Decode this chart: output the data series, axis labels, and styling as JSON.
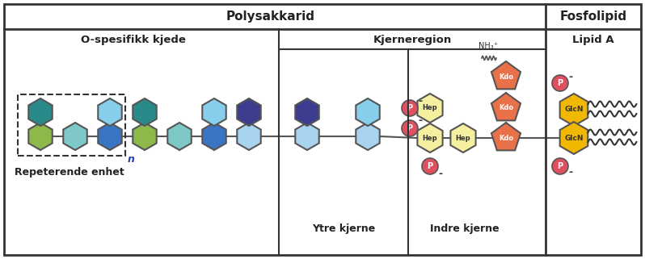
{
  "title_polysakkarid": "Polysakkarid",
  "title_fosfolipid": "Fosfolipid",
  "label_o_spesifikk": "O-spesifikk kjede",
  "label_kjerneregion": "Kjerneregion",
  "label_lipid_a": "Lipid A",
  "label_ytre": "Ytre kjerne",
  "label_indre": "Indre kjerne",
  "label_repeterende": "Repeterende enhet",
  "label_n": "n",
  "color_teal": "#2a8a8a",
  "color_light_blue": "#87ceeb",
  "color_blue": "#2e75b6",
  "color_light_green": "#8db84a",
  "color_light_cyan": "#7ec8c8",
  "color_mid_blue": "#3a75c4",
  "color_navy": "#3d3d8f",
  "color_powder_blue": "#a8d4f0",
  "color_kdo": "#e8714a",
  "color_hep": "#f5f0a0",
  "color_glcn": "#f0b800",
  "color_p": "#e05060",
  "color_border": "#444444",
  "bg_color": "#ffffff",
  "line_color": "#333333"
}
